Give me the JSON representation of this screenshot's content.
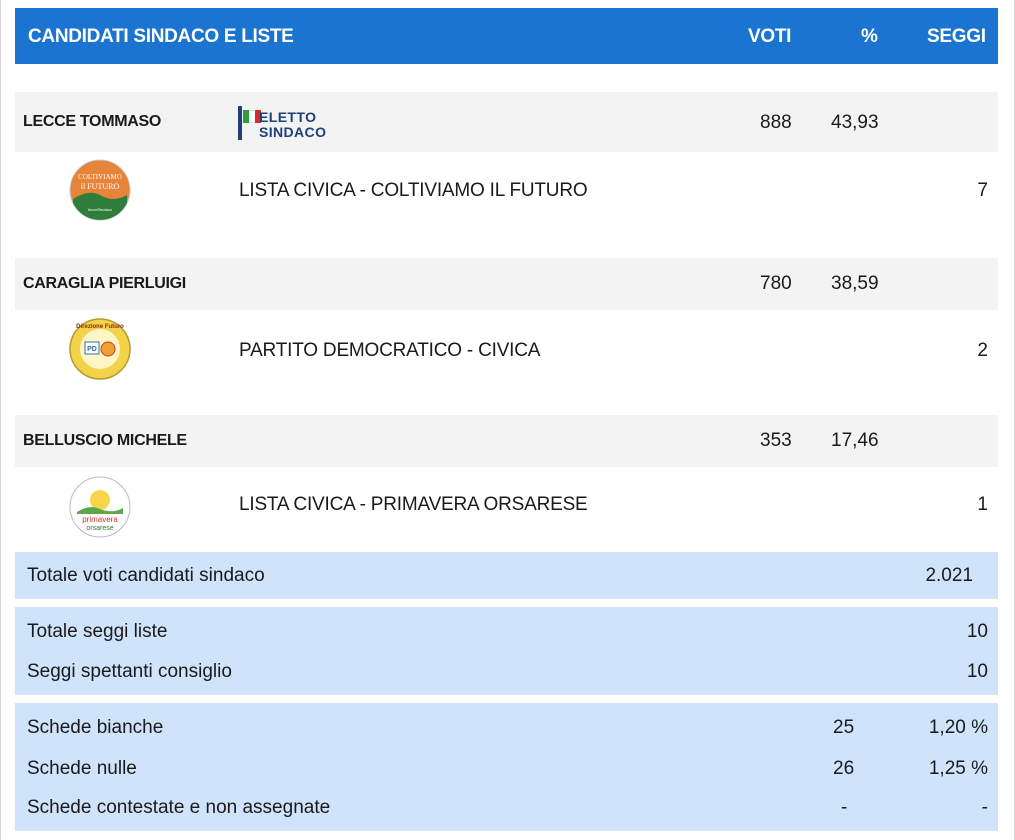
{
  "header": {
    "title": "CANDIDATI SINDACO E LISTE",
    "voti": "VOTI",
    "perc": "%",
    "seggi": "SEGGI"
  },
  "badge": {
    "line1": "ELETTO",
    "line2": "SINDACO"
  },
  "candidates": [
    {
      "name": "LECCE TOMMASO",
      "voti": "888",
      "perc": "43,93",
      "list": {
        "name": "LISTA CIVICA - COLTIVIAMO IL FUTURO",
        "seggi": "7",
        "logo_text_1": "COLTIVIAMO",
        "logo_text_2": "il FUTURO",
        "logo_text_3": "lecceSindaco",
        "logo_color": "#e8833a"
      }
    },
    {
      "name": "CARAGLIA PIERLUIGI",
      "voti": "780",
      "perc": "38,59",
      "list": {
        "name": "PARTITO DEMOCRATICO - CIVICA",
        "seggi": "2",
        "logo_text_1": "Direzione Futuro",
        "logo_text_2": "PD",
        "logo_color": "#f2d34a"
      }
    },
    {
      "name": "BELLUSCIO MICHELE",
      "voti": "353",
      "perc": "17,46",
      "list": {
        "name": "LISTA CIVICA - PRIMAVERA ORSARESE",
        "seggi": "1",
        "logo_text_1": "primavera",
        "logo_text_2": "orsarese",
        "logo_color": "#ffffff"
      }
    }
  ],
  "totals": {
    "voti_label": "Totale voti candidati sindaco",
    "voti_value": "2.021",
    "seggi_liste_label": "Totale seggi liste",
    "seggi_liste_value": "10",
    "seggi_consiglio_label": "Seggi spettanti consiglio",
    "seggi_consiglio_value": "10",
    "bianche_label": "Schede bianche",
    "bianche_value": "25",
    "bianche_perc": "1,20 %",
    "nulle_label": "Schede nulle",
    "nulle_value": "26",
    "nulle_perc": "1,25 %",
    "contestate_label": "Schede contestate e non assegnate",
    "contestate_value": "-",
    "contestate_perc": "-"
  },
  "colors": {
    "header_bg": "#1b75d0",
    "candidate_bg": "#f3f3f3",
    "totals_bg": "#cfe3fb"
  }
}
